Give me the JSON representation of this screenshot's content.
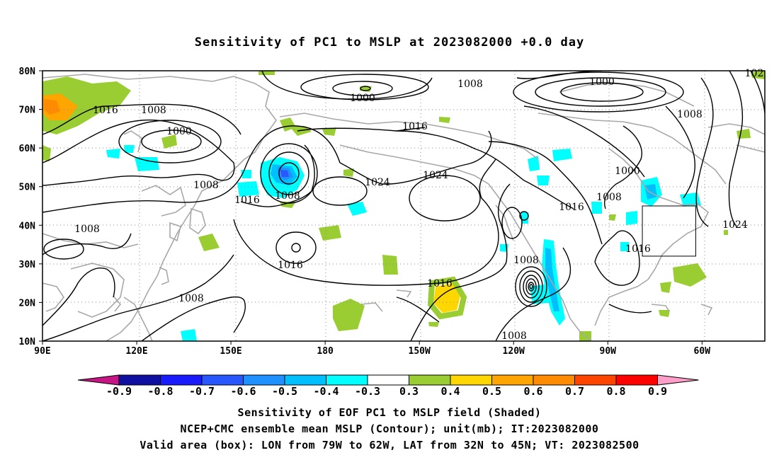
{
  "title": "Sensitivity of PC1 to MSLP at 2023082000 +0.0 day",
  "map": {
    "lat_labels": [
      "80N",
      "70N",
      "60N",
      "50N",
      "40N",
      "30N",
      "20N",
      "10N"
    ],
    "lon_labels": [
      "90E",
      "120E",
      "150E",
      "180",
      "150W",
      "120W",
      "90W",
      "60W"
    ],
    "contour_labels": [
      {
        "text": "1000"
      },
      {
        "text": "1008"
      },
      {
        "text": "1000"
      },
      {
        "text": "1008"
      },
      {
        "text": "1016"
      },
      {
        "text": "1008"
      },
      {
        "text": "1000"
      },
      {
        "text": "1016"
      },
      {
        "text": "1008"
      },
      {
        "text": "1016"
      },
      {
        "text": "1024"
      },
      {
        "text": "1024"
      },
      {
        "text": "1008"
      },
      {
        "text": "1000"
      },
      {
        "text": "1016"
      },
      {
        "text": "1008"
      },
      {
        "text": "1008"
      },
      {
        "text": "1016"
      },
      {
        "text": "1024"
      },
      {
        "text": "1016"
      },
      {
        "text": "1008"
      },
      {
        "text": "1008"
      },
      {
        "text": "1016"
      },
      {
        "text": "1008"
      },
      {
        "text": "102"
      }
    ],
    "valid_box": {
      "lon_west": -79,
      "lon_east": -62,
      "lat_south": 32,
      "lat_north": 45
    }
  },
  "colorbar": {
    "labels": [
      "-0.9",
      "-0.8",
      "-0.7",
      "-0.6",
      "-0.5",
      "-0.4",
      "-0.3",
      "0.3",
      "0.4",
      "0.5",
      "0.6",
      "0.7",
      "0.8",
      "0.9"
    ],
    "colors": [
      "#1010a0",
      "#1a1aff",
      "#2857ff",
      "#1e90ff",
      "#00bfff",
      "#00ffff",
      "#ffffff",
      "#9acd32",
      "#ffd700",
      "#ffa500",
      "#ff8c00",
      "#ff4500",
      "#ff0000"
    ],
    "low_extend_color": "#c71585",
    "high_extend_color": "#ff9ec8"
  },
  "footer": {
    "line1": "Sensitivity of EOF PC1 to MSLP field (Shaded)",
    "line2": "NCEP+CMC ensemble mean MSLP (Contour); unit(mb); IT:2023082000",
    "line3": "Valid area (box): LON from 79W to 62W, LAT from 32N to 45N; VT: 2023082500"
  }
}
